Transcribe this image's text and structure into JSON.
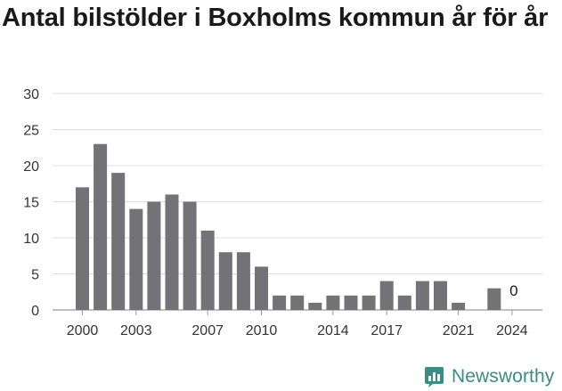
{
  "chart_data": {
    "type": "bar",
    "title": "Antal bilstölder i Boxholms kommun år för år",
    "xlabel": "",
    "ylabel": "",
    "ylim": [
      0,
      30
    ],
    "yticks": [
      "0",
      "5",
      "10",
      "15",
      "20",
      "25",
      "30"
    ],
    "xticks": [
      "2000",
      "2003",
      "2007",
      "2010",
      "2014",
      "2017",
      "2021",
      "2024"
    ],
    "grid": true,
    "x": [
      2000,
      2001,
      2002,
      2003,
      2004,
      2005,
      2006,
      2007,
      2008,
      2009,
      2010,
      2011,
      2012,
      2013,
      2014,
      2015,
      2016,
      2017,
      2018,
      2019,
      2020,
      2021,
      2022,
      2023,
      2024
    ],
    "values": [
      17,
      23,
      19,
      14,
      15,
      16,
      15,
      11,
      8,
      8,
      6,
      2,
      2,
      1,
      2,
      2,
      2,
      4,
      2,
      4,
      4,
      1,
      0,
      3,
      0
    ],
    "annotations": [
      {
        "x": 2024,
        "text": "0"
      }
    ],
    "bar_color": "#737277"
  },
  "brand": {
    "name": "Newsworthy",
    "icon": "newsworthy-logo-icon",
    "color": "#3a8d82"
  }
}
